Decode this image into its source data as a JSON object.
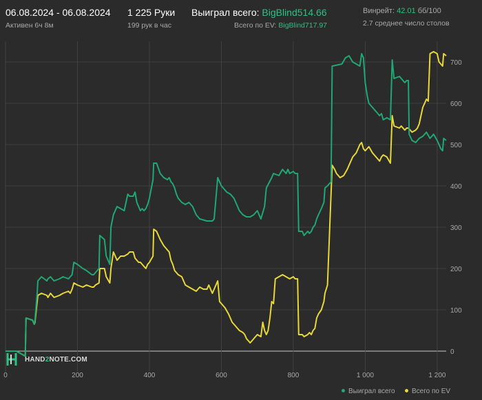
{
  "header": {
    "date_range": "06.08.2024 - 06.08.2024",
    "active": "Активен 6ч 8м",
    "hands": "1 225 Руки",
    "hands_per_hour": "199 рук в час",
    "won_label": "Выиграл всего:",
    "won_value": "BigBlind514.66",
    "ev_label": "Всего по EV:",
    "ev_value": "BigBlind717.97",
    "winrate_label": "Винрейт:",
    "winrate_value": "42.01",
    "winrate_per": "бб/100",
    "tables": "2.7 среднее число столов"
  },
  "logo": {
    "text_a": "HAND",
    "text_b": "2",
    "text_c": "NOTE.COM"
  },
  "colors": {
    "won": "#1fa876",
    "ev": "#e8d83a",
    "grid": "#474747",
    "zero_line": "#c8c8c8",
    "background": "#2b2b2b"
  },
  "chart_data": {
    "type": "line",
    "xlim": [
      0,
      1225
    ],
    "ylim": [
      -50,
      750
    ],
    "x_ticks": [
      0,
      200,
      400,
      600,
      800,
      1000,
      1200
    ],
    "x_tick_labels": [
      "0",
      "200",
      "400",
      "600",
      "800",
      "1 000",
      "1 200"
    ],
    "y_ticks": [
      0,
      100,
      200,
      300,
      400,
      500,
      600,
      700
    ],
    "y_tick_labels": [
      "0",
      "100",
      "200",
      "300",
      "400",
      "500",
      "600",
      "700"
    ],
    "legend_position": "bottom-right",
    "series": [
      {
        "name": "Выиграл всего",
        "color": "#1fa876",
        "points": [
          [
            0,
            0
          ],
          [
            30,
            0
          ],
          [
            55,
            -12
          ],
          [
            57,
            80
          ],
          [
            75,
            75
          ],
          [
            80,
            65
          ],
          [
            82,
            75
          ],
          [
            88,
            140
          ],
          [
            90,
            170
          ],
          [
            100,
            180
          ],
          [
            115,
            170
          ],
          [
            118,
            175
          ],
          [
            125,
            180
          ],
          [
            135,
            170
          ],
          [
            150,
            175
          ],
          [
            160,
            180
          ],
          [
            175,
            175
          ],
          [
            180,
            180
          ],
          [
            185,
            185
          ],
          [
            190,
            215
          ],
          [
            200,
            210
          ],
          [
            215,
            200
          ],
          [
            225,
            195
          ],
          [
            240,
            185
          ],
          [
            245,
            185
          ],
          [
            250,
            190
          ],
          [
            260,
            200
          ],
          [
            262,
            280
          ],
          [
            275,
            270
          ],
          [
            280,
            230
          ],
          [
            290,
            210
          ],
          [
            293,
            300
          ],
          [
            300,
            330
          ],
          [
            310,
            350
          ],
          [
            330,
            340
          ],
          [
            340,
            380
          ],
          [
            345,
            375
          ],
          [
            355,
            375
          ],
          [
            360,
            385
          ],
          [
            365,
            360
          ],
          [
            370,
            350
          ],
          [
            375,
            340
          ],
          [
            380,
            345
          ],
          [
            385,
            340
          ],
          [
            390,
            345
          ],
          [
            395,
            355
          ],
          [
            400,
            370
          ],
          [
            410,
            415
          ],
          [
            412,
            455
          ],
          [
            420,
            455
          ],
          [
            430,
            430
          ],
          [
            440,
            420
          ],
          [
            450,
            415
          ],
          [
            455,
            420
          ],
          [
            460,
            410
          ],
          [
            465,
            405
          ],
          [
            470,
            395
          ],
          [
            475,
            380
          ],
          [
            480,
            370
          ],
          [
            490,
            360
          ],
          [
            500,
            355
          ],
          [
            510,
            360
          ],
          [
            520,
            350
          ],
          [
            530,
            330
          ],
          [
            540,
            320
          ],
          [
            560,
            315
          ],
          [
            575,
            315
          ],
          [
            580,
            320
          ],
          [
            590,
            420
          ],
          [
            600,
            400
          ],
          [
            610,
            390
          ],
          [
            615,
            385
          ],
          [
            625,
            380
          ],
          [
            635,
            370
          ],
          [
            640,
            360
          ],
          [
            650,
            340
          ],
          [
            660,
            330
          ],
          [
            670,
            325
          ],
          [
            680,
            325
          ],
          [
            690,
            330
          ],
          [
            700,
            340
          ],
          [
            710,
            320
          ],
          [
            720,
            350
          ],
          [
            725,
            395
          ],
          [
            740,
            420
          ],
          [
            745,
            430
          ],
          [
            760,
            425
          ],
          [
            770,
            440
          ],
          [
            780,
            430
          ],
          [
            785,
            440
          ],
          [
            790,
            430
          ],
          [
            800,
            435
          ],
          [
            805,
            430
          ],
          [
            812,
            430
          ],
          [
            815,
            290
          ],
          [
            825,
            290
          ],
          [
            830,
            280
          ],
          [
            840,
            290
          ],
          [
            845,
            285
          ],
          [
            850,
            290
          ],
          [
            855,
            300
          ],
          [
            860,
            305
          ],
          [
            865,
            320
          ],
          [
            870,
            330
          ],
          [
            878,
            345
          ],
          [
            885,
            360
          ],
          [
            888,
            395
          ],
          [
            895,
            400
          ],
          [
            900,
            405
          ],
          [
            905,
            410
          ],
          [
            908,
            690
          ],
          [
            935,
            695
          ],
          [
            945,
            710
          ],
          [
            955,
            715
          ],
          [
            965,
            700
          ],
          [
            975,
            695
          ],
          [
            985,
            690
          ],
          [
            990,
            720
          ],
          [
            995,
            710
          ],
          [
            1000,
            650
          ],
          [
            1005,
            620
          ],
          [
            1010,
            600
          ],
          [
            1020,
            590
          ],
          [
            1030,
            580
          ],
          [
            1040,
            570
          ],
          [
            1045,
            575
          ],
          [
            1050,
            560
          ],
          [
            1060,
            565
          ],
          [
            1070,
            560
          ],
          [
            1075,
            705
          ],
          [
            1080,
            660
          ],
          [
            1095,
            665
          ],
          [
            1100,
            660
          ],
          [
            1110,
            650
          ],
          [
            1115,
            655
          ],
          [
            1120,
            655
          ],
          [
            1122,
            525
          ],
          [
            1130,
            510
          ],
          [
            1140,
            505
          ],
          [
            1150,
            515
          ],
          [
            1160,
            520
          ],
          [
            1170,
            530
          ],
          [
            1180,
            515
          ],
          [
            1190,
            525
          ],
          [
            1200,
            510
          ],
          [
            1205,
            500
          ],
          [
            1210,
            490
          ],
          [
            1215,
            485
          ],
          [
            1218,
            515
          ],
          [
            1225,
            510
          ]
        ]
      },
      {
        "name": "Всего по EV",
        "color": "#e8d83a",
        "points": [
          [
            0,
            0
          ],
          [
            30,
            0
          ],
          [
            55,
            -12
          ],
          [
            57,
            80
          ],
          [
            75,
            75
          ],
          [
            80,
            65
          ],
          [
            82,
            70
          ],
          [
            88,
            120
          ],
          [
            90,
            135
          ],
          [
            100,
            140
          ],
          [
            115,
            135
          ],
          [
            118,
            130
          ],
          [
            125,
            140
          ],
          [
            135,
            130
          ],
          [
            150,
            135
          ],
          [
            160,
            140
          ],
          [
            175,
            145
          ],
          [
            180,
            140
          ],
          [
            185,
            150
          ],
          [
            190,
            165
          ],
          [
            200,
            160
          ],
          [
            215,
            155
          ],
          [
            225,
            160
          ],
          [
            240,
            155
          ],
          [
            245,
            155
          ],
          [
            250,
            160
          ],
          [
            260,
            165
          ],
          [
            262,
            200
          ],
          [
            275,
            200
          ],
          [
            280,
            180
          ],
          [
            290,
            165
          ],
          [
            293,
            200
          ],
          [
            300,
            240
          ],
          [
            310,
            220
          ],
          [
            320,
            230
          ],
          [
            330,
            230
          ],
          [
            340,
            235
          ],
          [
            345,
            240
          ],
          [
            355,
            240
          ],
          [
            360,
            225
          ],
          [
            365,
            220
          ],
          [
            370,
            215
          ],
          [
            375,
            215
          ],
          [
            380,
            210
          ],
          [
            385,
            205
          ],
          [
            390,
            200
          ],
          [
            395,
            210
          ],
          [
            400,
            215
          ],
          [
            410,
            230
          ],
          [
            412,
            295
          ],
          [
            420,
            290
          ],
          [
            430,
            270
          ],
          [
            440,
            255
          ],
          [
            450,
            245
          ],
          [
            455,
            240
          ],
          [
            460,
            220
          ],
          [
            465,
            210
          ],
          [
            470,
            195
          ],
          [
            475,
            190
          ],
          [
            480,
            185
          ],
          [
            490,
            180
          ],
          [
            500,
            160
          ],
          [
            510,
            155
          ],
          [
            520,
            150
          ],
          [
            530,
            145
          ],
          [
            540,
            155
          ],
          [
            550,
            150
          ],
          [
            560,
            150
          ],
          [
            565,
            160
          ],
          [
            570,
            150
          ],
          [
            575,
            140
          ],
          [
            580,
            150
          ],
          [
            590,
            170
          ],
          [
            595,
            120
          ],
          [
            600,
            115
          ],
          [
            610,
            105
          ],
          [
            620,
            90
          ],
          [
            630,
            70
          ],
          [
            640,
            60
          ],
          [
            650,
            50
          ],
          [
            660,
            45
          ],
          [
            665,
            40
          ],
          [
            670,
            30
          ],
          [
            675,
            25
          ],
          [
            680,
            20
          ],
          [
            690,
            30
          ],
          [
            700,
            40
          ],
          [
            710,
            35
          ],
          [
            715,
            70
          ],
          [
            720,
            50
          ],
          [
            725,
            40
          ],
          [
            730,
            50
          ],
          [
            735,
            80
          ],
          [
            740,
            120
          ],
          [
            745,
            115
          ],
          [
            750,
            175
          ],
          [
            760,
            180
          ],
          [
            770,
            185
          ],
          [
            780,
            180
          ],
          [
            790,
            175
          ],
          [
            800,
            180
          ],
          [
            805,
            175
          ],
          [
            812,
            175
          ],
          [
            815,
            40
          ],
          [
            825,
            40
          ],
          [
            830,
            35
          ],
          [
            840,
            40
          ],
          [
            845,
            45
          ],
          [
            850,
            40
          ],
          [
            855,
            50
          ],
          [
            860,
            55
          ],
          [
            865,
            80
          ],
          [
            870,
            90
          ],
          [
            878,
            100
          ],
          [
            885,
            120
          ],
          [
            888,
            140
          ],
          [
            895,
            160
          ],
          [
            908,
            450
          ],
          [
            915,
            440
          ],
          [
            920,
            430
          ],
          [
            930,
            420
          ],
          [
            940,
            425
          ],
          [
            950,
            440
          ],
          [
            955,
            450
          ],
          [
            965,
            470
          ],
          [
            975,
            480
          ],
          [
            985,
            500
          ],
          [
            990,
            505
          ],
          [
            995,
            490
          ],
          [
            1000,
            485
          ],
          [
            1010,
            495
          ],
          [
            1020,
            480
          ],
          [
            1030,
            470
          ],
          [
            1040,
            460
          ],
          [
            1045,
            470
          ],
          [
            1050,
            475
          ],
          [
            1060,
            470
          ],
          [
            1070,
            455
          ],
          [
            1075,
            570
          ],
          [
            1080,
            545
          ],
          [
            1095,
            540
          ],
          [
            1100,
            545
          ],
          [
            1110,
            535
          ],
          [
            1115,
            540
          ],
          [
            1120,
            540
          ],
          [
            1125,
            535
          ],
          [
            1130,
            530
          ],
          [
            1140,
            535
          ],
          [
            1145,
            540
          ],
          [
            1150,
            550
          ],
          [
            1160,
            590
          ],
          [
            1165,
            600
          ],
          [
            1170,
            610
          ],
          [
            1175,
            605
          ],
          [
            1180,
            720
          ],
          [
            1190,
            725
          ],
          [
            1200,
            720
          ],
          [
            1205,
            700
          ],
          [
            1210,
            695
          ],
          [
            1215,
            690
          ],
          [
            1218,
            720
          ],
          [
            1225,
            715
          ]
        ]
      }
    ]
  }
}
